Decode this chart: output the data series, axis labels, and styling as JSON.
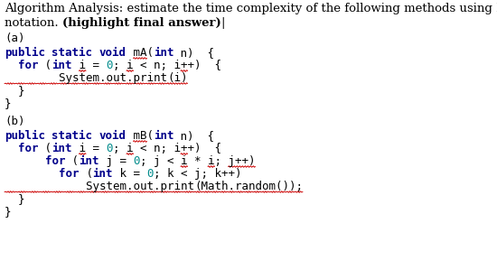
{
  "bg_color": "#ffffff",
  "fig_width": 5.5,
  "fig_height": 2.99,
  "dpi": 100,
  "NAVY": "#00008B",
  "TEAL": "#008B8B",
  "BLACK": "#000000",
  "RED": "#CC0000",
  "header_fontsize": 9.5,
  "code_fontsize": 9.0,
  "label_fontsize": 9.0,
  "header_line1": "Algorithm Analysis: estimate the time complexity of the following methods using Big O",
  "header_line2_plain": "notation. ",
  "header_line2_bold": "(highlight final answer)",
  "header_line2_cursor": "|",
  "section_a_label": "(a)",
  "section_b_label": "(b)",
  "lines_a": [
    [
      [
        "public",
        "NAVY",
        true
      ],
      [
        " ",
        "BLACK",
        false
      ],
      [
        "static",
        "NAVY",
        true
      ],
      [
        " ",
        "BLACK",
        false
      ],
      [
        "void",
        "NAVY",
        true
      ],
      [
        " mA(",
        "BLACK",
        false
      ],
      [
        "int",
        "NAVY",
        true
      ],
      [
        " n)  {",
        "BLACK",
        false
      ]
    ],
    [
      [
        "  for",
        "NAVY",
        true
      ],
      [
        " (",
        "BLACK",
        false
      ],
      [
        "int",
        "NAVY",
        true
      ],
      [
        " i = ",
        "BLACK",
        false
      ],
      [
        "0",
        "TEAL",
        false
      ],
      [
        "; i < n; i++)  {",
        "BLACK",
        false
      ]
    ],
    [
      [
        "        System.out.print",
        "BLACK",
        false
      ],
      [
        "(i)",
        "BLACK",
        false
      ]
    ],
    [
      [
        "  }",
        "BLACK",
        false
      ]
    ],
    [
      [
        "}",
        "BLACK",
        false
      ]
    ]
  ],
  "lines_b": [
    [
      [
        "public",
        "NAVY",
        true
      ],
      [
        " ",
        "BLACK",
        false
      ],
      [
        "static",
        "NAVY",
        true
      ],
      [
        " ",
        "BLACK",
        false
      ],
      [
        "void",
        "NAVY",
        true
      ],
      [
        " mB(",
        "BLACK",
        false
      ],
      [
        "int",
        "NAVY",
        true
      ],
      [
        " n)  {",
        "BLACK",
        false
      ]
    ],
    [
      [
        "  for",
        "NAVY",
        true
      ],
      [
        " (",
        "BLACK",
        false
      ],
      [
        "int",
        "NAVY",
        true
      ],
      [
        " i = ",
        "BLACK",
        false
      ],
      [
        "0",
        "TEAL",
        false
      ],
      [
        "; i < n; i++)  {",
        "BLACK",
        false
      ]
    ],
    [
      [
        "      for",
        "NAVY",
        true
      ],
      [
        " (",
        "BLACK",
        false
      ],
      [
        "int",
        "NAVY",
        true
      ],
      [
        " j = ",
        "BLACK",
        false
      ],
      [
        "0",
        "TEAL",
        false
      ],
      [
        "; j < i * i; j++)",
        "BLACK",
        false
      ]
    ],
    [
      [
        "        for",
        "NAVY",
        true
      ],
      [
        " (",
        "BLACK",
        false
      ],
      [
        "int",
        "NAVY",
        true
      ],
      [
        " k = ",
        "BLACK",
        false
      ],
      [
        "0",
        "TEAL",
        false
      ],
      [
        "; k < j; k++)",
        "BLACK",
        false
      ]
    ],
    [
      [
        "            System.out.print",
        "BLACK",
        false
      ],
      [
        "(Math.random());",
        "BLACK",
        false
      ]
    ],
    [
      [
        "  }",
        "BLACK",
        false
      ]
    ],
    [
      [
        "}",
        "BLACK",
        false
      ]
    ]
  ]
}
